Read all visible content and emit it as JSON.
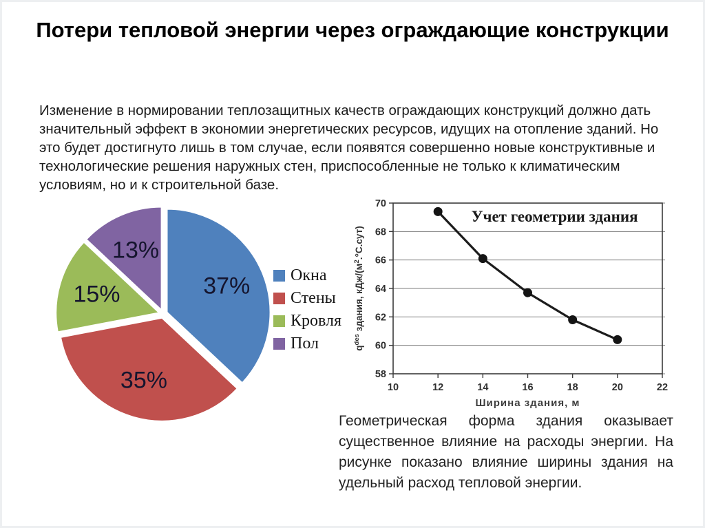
{
  "slide": {
    "title": "Потери тепловой энергии через ограждающие конструкции",
    "intro": "Изменение в нормировании теплозащитных качеств ограждающих конструкций должно дать значительный эффект в экономии энергетических ресурсов, идущих на отопление зданий. Но это будет достигнуто лишь в том случае, если появятся совершенно новые конструктивные и технологические решения наружных стен, приспособленные не только к климатическим условиям, но и к строительной базе.",
    "caption": "Геометрическая форма здания оказывает существенное влияние на расходы энергии. На рисунке показано влияние ширины здания на удельный расход тепловой энергии."
  },
  "chart_data": [
    {
      "type": "pie",
      "categories": [
        "Окна",
        "Стены",
        "Кровля",
        "Пол"
      ],
      "values": [
        37,
        35,
        15,
        13
      ],
      "labels": [
        "37%",
        "35%",
        "15%",
        "13%"
      ],
      "colors": [
        "#4f81bd",
        "#c0504d",
        "#9bbb59",
        "#8064a2"
      ],
      "label_color": "#15152e",
      "legend_position": "right",
      "start_angle_deg": 0,
      "direction": "clockwise",
      "exploded": true
    },
    {
      "type": "line",
      "title": "Учет геометрии здания",
      "x": [
        12,
        14,
        16,
        18,
        20
      ],
      "y": [
        69.4,
        66.1,
        63.7,
        61.8,
        60.4
      ],
      "xlabel": "Ширина здания, м",
      "ylabel": "q^des здания, кДж/(м^2.°С.сут)",
      "ylabel_parts": [
        {
          "text": "q",
          "sup": false
        },
        {
          "text": "des",
          "sup": true
        },
        {
          "text": " здания, кДж/(м",
          "sup": false
        },
        {
          "text": "2",
          "sup": true
        },
        {
          "text": ".°С.сут)",
          "sup": false
        }
      ],
      "xlim": [
        10,
        22
      ],
      "ylim": [
        58,
        70
      ],
      "xticks": [
        10,
        12,
        14,
        16,
        18,
        20,
        22
      ],
      "yticks": [
        58,
        60,
        62,
        64,
        66,
        68,
        70
      ],
      "grid": "horizontal",
      "line_color": "#1c1c1c",
      "marker": "circle",
      "legend_position": "none"
    }
  ]
}
